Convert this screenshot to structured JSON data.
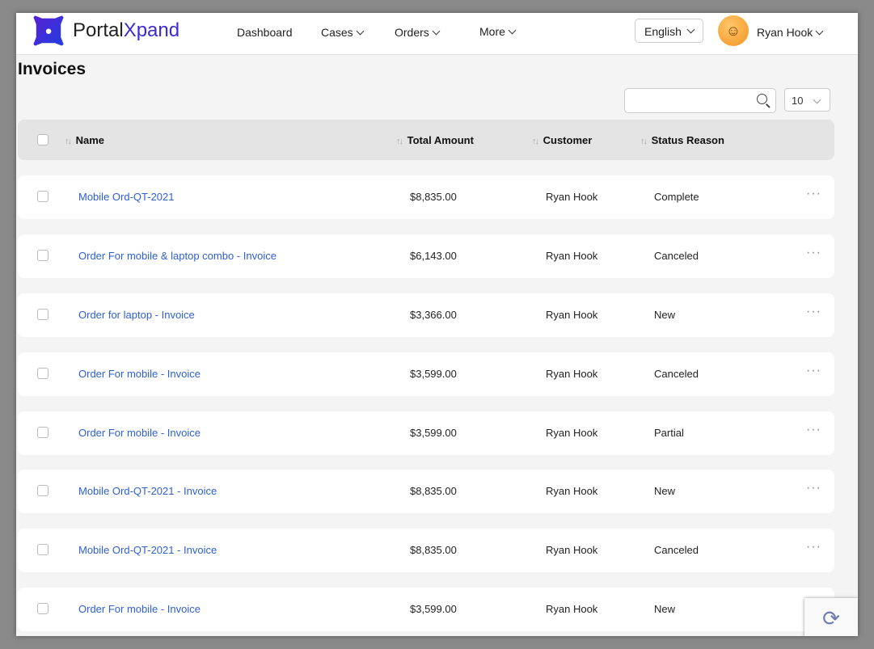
{
  "brand": {
    "name_a": "Portal",
    "name_b": "Xpand"
  },
  "nav": {
    "items": [
      {
        "label": "Dashboard"
      },
      {
        "label": "Cases"
      },
      {
        "label": "Orders"
      },
      {
        "label": "More"
      }
    ],
    "language": "English",
    "user": "Ryan Hook"
  },
  "page": {
    "title": "Invoices",
    "search_placeholder": "",
    "page_size": "10"
  },
  "table": {
    "columns": [
      "Name",
      "Total Amount",
      "Customer",
      "Status Reason"
    ],
    "rows": [
      {
        "name": "Mobile Ord-QT-2021",
        "amount": "$8,835.00",
        "customer": "Ryan Hook",
        "status": "Complete"
      },
      {
        "name": "Order For mobile & laptop combo - Invoice",
        "amount": "$6,143.00",
        "customer": "Ryan Hook",
        "status": "Canceled"
      },
      {
        "name": "Order for laptop - Invoice",
        "amount": "$3,366.00",
        "customer": "Ryan Hook",
        "status": "New"
      },
      {
        "name": "Order For mobile - Invoice",
        "amount": "$3,599.00",
        "customer": "Ryan Hook",
        "status": "Canceled"
      },
      {
        "name": "Order For mobile - Invoice",
        "amount": "$3,599.00",
        "customer": "Ryan Hook",
        "status": "Partial"
      },
      {
        "name": "Mobile Ord-QT-2021 - Invoice",
        "amount": "$8,835.00",
        "customer": "Ryan Hook",
        "status": "New"
      },
      {
        "name": "Mobile Ord-QT-2021 - Invoice",
        "amount": "$8,835.00",
        "customer": "Ryan Hook",
        "status": "Canceled"
      },
      {
        "name": "Order For mobile - Invoice",
        "amount": "$3,599.00",
        "customer": "Ryan Hook",
        "status": "New"
      }
    ]
  },
  "colors": {
    "link": "#2d5fd7",
    "brand": "#3b2bd6"
  }
}
